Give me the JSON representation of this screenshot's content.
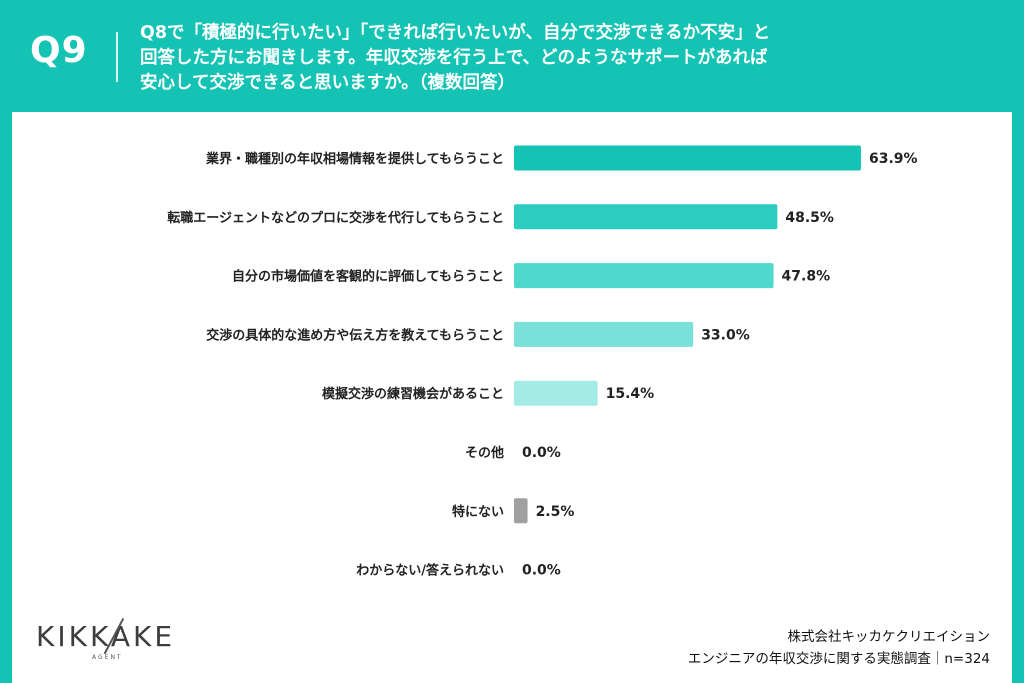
{
  "header": {
    "question_number": "Q9",
    "question_lines": [
      "Q8で「積極的に行いたい」「できれば行いたいが、自分で交渉できるか不安」と",
      "回答した方にお聞きします。年収交渉を行う上で、どのようなサポートがあれば",
      "安心して交渉できると思いますか。（複数回答）"
    ]
  },
  "chart_data": {
    "type": "bar",
    "orientation": "horizontal",
    "title": "",
    "categories": [
      "業界・職種別の年収相場情報を提供してもらうこと",
      "転職エージェントなどのプロに交渉を代行してもらうこと",
      "自分の市場価値を客観的に評価してもらうこと",
      "交渉の具体的な進め方や伝え方を教えてもらうこと",
      "模擬交渉の練習機会があること",
      "その他",
      "特にない",
      "わからない/答えられない"
    ],
    "values": [
      63.9,
      48.5,
      47.8,
      33.0,
      15.4,
      0.0,
      2.5,
      0.0
    ],
    "value_labels": [
      "63.9%",
      "48.5%",
      "47.8%",
      "33.0%",
      "15.4%",
      "0.0%",
      "2.5%",
      "0.0%"
    ],
    "colors": [
      "#14c3b4",
      "#2ccdc0",
      "#4fd8cc",
      "#79e1d9",
      "#a3ebe4",
      "#a3ebe4",
      "#a0a0a0",
      "#a0a0a0"
    ],
    "xlim": [
      0,
      100
    ],
    "unit": "%"
  },
  "branding": {
    "logo_text": "KIKKAKE",
    "logo_sub": "AGENT"
  },
  "source": {
    "company": "株式会社キッカケクリエイション",
    "survey": "エンジニアの年収交渉に関する実態調査｜n=324"
  }
}
